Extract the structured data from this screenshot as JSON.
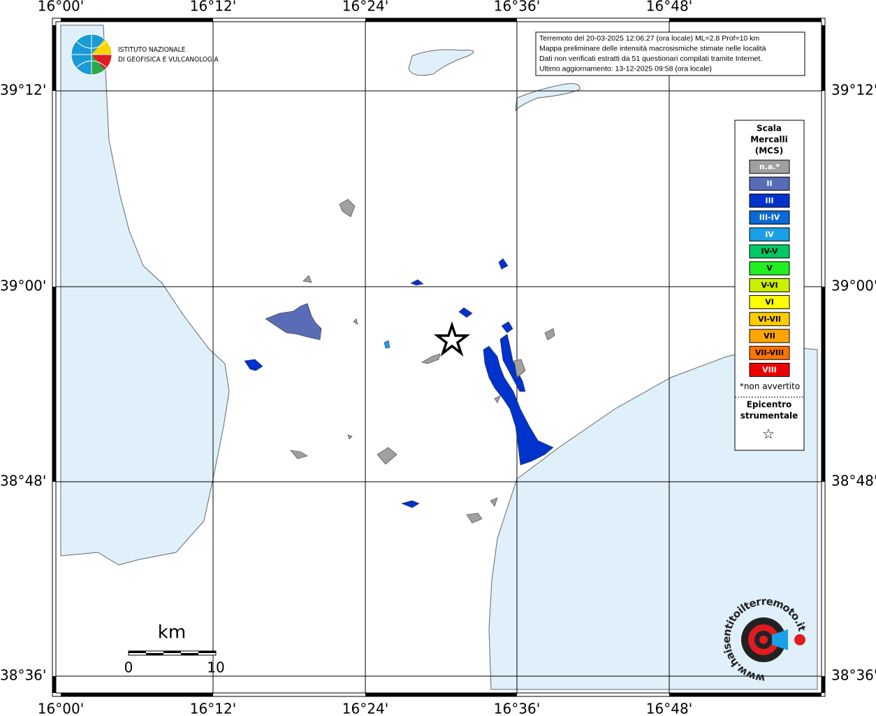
{
  "logo": {
    "line1": "ISTITUTO NAZIONALE",
    "line2": "DI GEOFISICA E VULCANOLOGIA"
  },
  "info": {
    "lines": [
      "Terremoto del 20-03-2025 12:06:27 (ora locale) ML=2.8 Prof=10 km",
      "Mappa preliminare delle intensità macrosismiche stimate nelle località",
      "Dati non verificati estratti da 51 questionari compilati tramite Internet.",
      "Ultimo aggiornamento: 13-12-2025 09:58 (ora locale)"
    ]
  },
  "axes": {
    "longitudes": [
      "16°00'",
      "16°12'",
      "16°24'",
      "16°36'",
      "16°48'"
    ],
    "latitudes": [
      "39°12'",
      "39°00'",
      "38°48'",
      "38°36'"
    ]
  },
  "legend": {
    "title": [
      "Scala",
      "Mercalli",
      "(MCS)"
    ],
    "levels": [
      {
        "label": "n.a.*",
        "color": "#a0a0a0",
        "text_color": "#ffffff"
      },
      {
        "label": "II",
        "color": "#5a6cb5",
        "text_color": "#ffffff"
      },
      {
        "label": "III",
        "color": "#0033cc",
        "text_color": "#ffffff"
      },
      {
        "label": "III-IV",
        "color": "#0a6ad6",
        "text_color": "#ffffff"
      },
      {
        "label": "IV",
        "color": "#1aa0e6",
        "text_color": "#ffffff"
      },
      {
        "label": "IV-V",
        "color": "#00c864",
        "text_color": "#000000"
      },
      {
        "label": "V",
        "color": "#22ee22",
        "text_color": "#000000"
      },
      {
        "label": "V-VI",
        "color": "#ccf000",
        "text_color": "#000000"
      },
      {
        "label": "VI",
        "color": "#ffff00",
        "text_color": "#000000"
      },
      {
        "label": "VI-VII",
        "color": "#ffcc00",
        "text_color": "#000000"
      },
      {
        "label": "VII",
        "color": "#ffa500",
        "text_color": "#000000"
      },
      {
        "label": "VII-VIII",
        "color": "#ff7300",
        "text_color": "#000000"
      },
      {
        "label": "VIII",
        "color": "#ee0000",
        "text_color": "#ffffff"
      }
    ],
    "note": "*non avvertito",
    "epicenter_title": [
      "Epicentro",
      "strumentale"
    ],
    "epicenter_symbol": "☆"
  },
  "scale_bar": {
    "unit": "km",
    "start": "0",
    "end": "10"
  },
  "watermark": "www.haisentitoilterremoto.it"
}
